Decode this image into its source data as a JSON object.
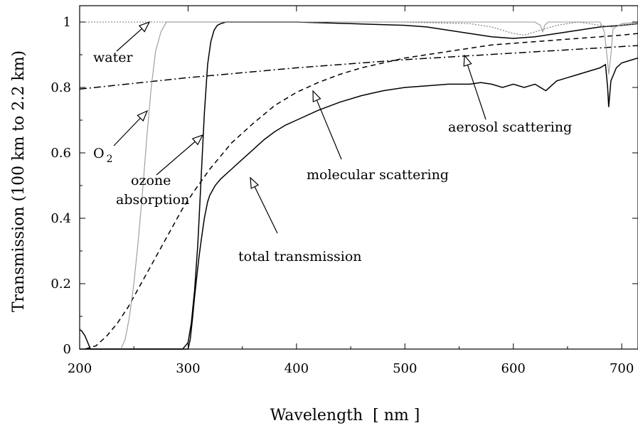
{
  "chart_data": {
    "type": "line",
    "title": "",
    "xlabel": "Wavelength  [ nm ]",
    "ylabel": "Transmission (100 km to 2.2 km)",
    "xlim": [
      200,
      715
    ],
    "ylim": [
      0,
      1.02
    ],
    "x_ticks": [
      200,
      300,
      400,
      500,
      600,
      700
    ],
    "y_ticks": [
      0,
      0.2,
      0.4,
      0.6,
      0.8,
      1
    ],
    "y_tick_labels": [
      "0",
      "0.2",
      "0.4",
      "0.6",
      "0.8",
      "1"
    ],
    "grid": false,
    "legend": "none",
    "series": [
      {
        "key": "total",
        "style": "solid",
        "color": "#000000",
        "x": [
          200,
          202,
          205,
          210,
          215,
          220,
          230,
          240,
          250,
          260,
          270,
          280,
          290,
          295,
          300,
          302,
          304,
          306,
          308,
          310,
          312,
          315,
          318,
          320,
          325,
          330,
          340,
          350,
          360,
          370,
          380,
          390,
          400,
          420,
          440,
          460,
          480,
          500,
          520,
          540,
          560,
          570,
          580,
          590,
          600,
          610,
          620,
          630,
          640,
          650,
          660,
          670,
          680,
          685,
          687,
          688,
          690,
          695,
          700,
          710,
          715
        ],
        "y": [
          0.06,
          0.055,
          0.04,
          0.0,
          0.0,
          0.0,
          0.0,
          0.0,
          0.0,
          0.0,
          0.0,
          0.0,
          0.0,
          0.0,
          0.0,
          0.03,
          0.09,
          0.16,
          0.22,
          0.28,
          0.33,
          0.4,
          0.45,
          0.47,
          0.5,
          0.52,
          0.55,
          0.58,
          0.61,
          0.64,
          0.665,
          0.685,
          0.7,
          0.73,
          0.755,
          0.775,
          0.79,
          0.8,
          0.805,
          0.81,
          0.81,
          0.815,
          0.81,
          0.8,
          0.81,
          0.8,
          0.81,
          0.79,
          0.82,
          0.83,
          0.84,
          0.85,
          0.86,
          0.87,
          0.8,
          0.74,
          0.82,
          0.86,
          0.875,
          0.885,
          0.89
        ]
      },
      {
        "key": "ozone",
        "style": "solid",
        "color": "#000000",
        "x": [
          200,
          290,
          295,
          300,
          303,
          306,
          309,
          312,
          315,
          318,
          321,
          324,
          327,
          330,
          335,
          340,
          350,
          400,
          450,
          500,
          520,
          540,
          560,
          580,
          600,
          620,
          640,
          660,
          680,
          700,
          715
        ],
        "y": [
          0,
          0,
          0.0,
          0.02,
          0.08,
          0.18,
          0.32,
          0.52,
          0.72,
          0.87,
          0.94,
          0.975,
          0.99,
          0.995,
          1.0,
          1.0,
          1.0,
          1.0,
          0.995,
          0.99,
          0.985,
          0.975,
          0.965,
          0.955,
          0.95,
          0.955,
          0.965,
          0.975,
          0.985,
          0.99,
          0.995
        ]
      },
      {
        "key": "molecular",
        "style": "dashed",
        "color": "#000000",
        "x": [
          205,
          215,
          225,
          235,
          245,
          255,
          265,
          275,
          285,
          295,
          305,
          320,
          340,
          360,
          380,
          400,
          420,
          440,
          460,
          480,
          500,
          520,
          540,
          560,
          580,
          600,
          620,
          640,
          660,
          680,
          700,
          715
        ],
        "y": [
          0.0,
          0.01,
          0.04,
          0.08,
          0.13,
          0.19,
          0.25,
          0.31,
          0.37,
          0.43,
          0.48,
          0.55,
          0.63,
          0.69,
          0.745,
          0.785,
          0.815,
          0.84,
          0.86,
          0.875,
          0.89,
          0.9,
          0.91,
          0.92,
          0.93,
          0.935,
          0.94,
          0.945,
          0.95,
          0.955,
          0.96,
          0.965
        ]
      },
      {
        "key": "aerosol",
        "style": "dashdot",
        "color": "#000000",
        "x": [
          200,
          300,
          400,
          500,
          600,
          700,
          715
        ],
        "y": [
          0.795,
          0.83,
          0.86,
          0.885,
          0.905,
          0.925,
          0.928
        ]
      },
      {
        "key": "o2",
        "style": "solid",
        "color": "#999999",
        "x": [
          200,
          220,
          230,
          238,
          242,
          246,
          250,
          254,
          258,
          262,
          266,
          270,
          275,
          280,
          300,
          400,
          500,
          620,
          625,
          627,
          629,
          632,
          680,
          684,
          687,
          688,
          690,
          692,
          700,
          715
        ],
        "y": [
          0,
          0,
          0,
          0.0,
          0.03,
          0.1,
          0.2,
          0.33,
          0.48,
          0.65,
          0.8,
          0.91,
          0.97,
          1.0,
          1.0,
          1.0,
          1.0,
          1.0,
          0.99,
          0.97,
          0.99,
          1.0,
          1.0,
          0.97,
          0.88,
          0.84,
          0.9,
          0.98,
          0.995,
          1.0
        ]
      },
      {
        "key": "water",
        "style": "dotted",
        "color": "#777777",
        "x": [
          200,
          500,
          560,
          580,
          590,
          600,
          610,
          620,
          630,
          640,
          650,
          660,
          680,
          690,
          700,
          715
        ],
        "y": [
          1.0,
          1.0,
          0.995,
          0.985,
          0.975,
          0.965,
          0.96,
          0.97,
          0.98,
          0.99,
          0.995,
          1.0,
          0.99,
          0.985,
          0.99,
          0.995
        ]
      }
    ],
    "annotations": [
      {
        "key": "water",
        "text": "water"
      },
      {
        "key": "o2",
        "text": "O",
        "sub": "2"
      },
      {
        "key": "ozone1",
        "text": "ozone"
      },
      {
        "key": "ozone2",
        "text": "absorption"
      },
      {
        "key": "molecular",
        "text": "molecular scattering"
      },
      {
        "key": "aerosol",
        "text": "aerosol scattering"
      },
      {
        "key": "total",
        "text": "total transmission"
      }
    ]
  }
}
